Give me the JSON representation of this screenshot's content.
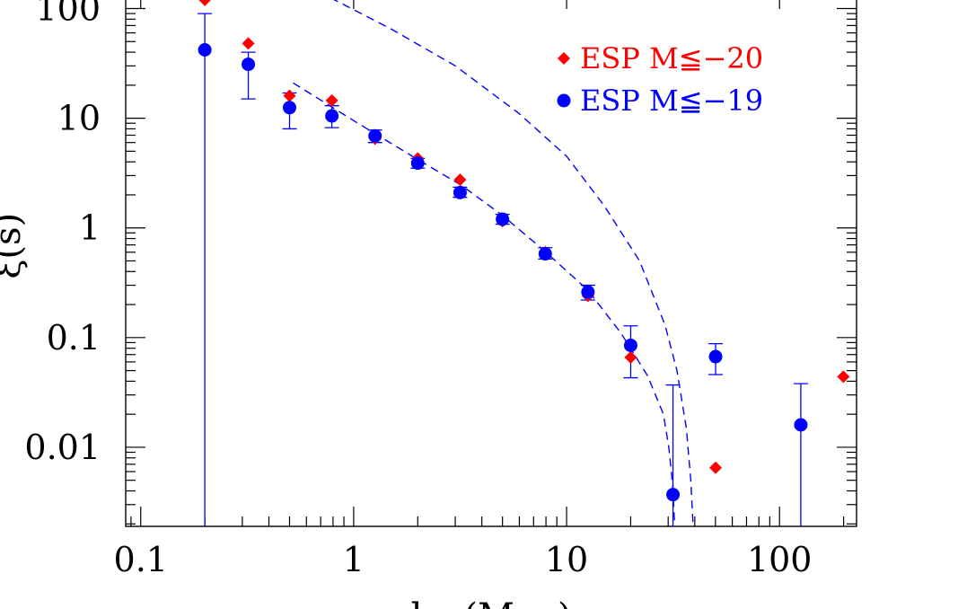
{
  "chart_data": {
    "type": "scatter",
    "xscale": "log",
    "yscale": "log",
    "xlim": [
      0.085,
      230
    ],
    "ylim": [
      0.0019,
      150
    ],
    "xlabel": "hs (Mpc)",
    "ylabel": "ξ(s)",
    "xticks": [
      {
        "value": 0.1,
        "label": "0.1"
      },
      {
        "value": 1,
        "label": "1"
      },
      {
        "value": 10,
        "label": "10"
      },
      {
        "value": 100,
        "label": "100"
      }
    ],
    "yticks": [
      {
        "value": 0.01,
        "label": "0.01"
      },
      {
        "value": 0.1,
        "label": "0.1"
      },
      {
        "value": 1,
        "label": "1"
      },
      {
        "value": 10,
        "label": "10"
      },
      {
        "value": 100,
        "label": "100"
      }
    ],
    "legend_position": "top-right",
    "series": [
      {
        "name": "ESP M≦−20",
        "color": "#ff0000",
        "marker": "diamond",
        "points": [
          {
            "x": 0.2,
            "y": 120
          },
          {
            "x": 0.32,
            "y": 48
          },
          {
            "x": 0.5,
            "y": 16
          },
          {
            "x": 0.79,
            "y": 14.5
          },
          {
            "x": 1.26,
            "y": 6.5
          },
          {
            "x": 2.0,
            "y": 4.3
          },
          {
            "x": 3.16,
            "y": 2.75
          },
          {
            "x": 5.0,
            "y": 1.15
          },
          {
            "x": 7.94,
            "y": 0.6
          },
          {
            "x": 12.6,
            "y": 0.24
          },
          {
            "x": 20.0,
            "y": 0.066
          },
          {
            "x": 50.1,
            "y": 0.0065
          },
          {
            "x": 199.5,
            "y": 0.044
          }
        ]
      },
      {
        "name": "ESP M≦−19",
        "color": "#0000ff",
        "marker": "circle",
        "points": [
          {
            "x": 0.2,
            "y": 42,
            "yerr": [
              0.0019,
              90
            ]
          },
          {
            "x": 0.32,
            "y": 31,
            "yerr": [
              15,
              40
            ]
          },
          {
            "x": 0.5,
            "y": 12.5,
            "yerr": [
              8,
              17
            ]
          },
          {
            "x": 0.79,
            "y": 10.5,
            "yerr": [
              8.2,
              13
            ]
          },
          {
            "x": 1.26,
            "y": 6.9,
            "yerr": [
              6,
              7.8
            ]
          },
          {
            "x": 2.0,
            "y": 3.9,
            "yerr": [
              3.5,
              4.3
            ]
          },
          {
            "x": 3.16,
            "y": 2.1,
            "yerr": [
              1.9,
              2.35
            ]
          },
          {
            "x": 5.0,
            "y": 1.2,
            "yerr": [
              1.08,
              1.33
            ]
          },
          {
            "x": 7.94,
            "y": 0.58,
            "yerr": [
              0.52,
              0.66
            ]
          },
          {
            "x": 12.6,
            "y": 0.26,
            "yerr": [
              0.22,
              0.3
            ]
          },
          {
            "x": 20.0,
            "y": 0.085,
            "yerr": [
              0.043,
              0.128
            ]
          },
          {
            "x": 31.6,
            "y": 0.0037,
            "yerr": [
              0.0019,
              0.037
            ]
          },
          {
            "x": 50.1,
            "y": 0.067,
            "yerr": [
              0.046,
              0.088
            ]
          },
          {
            "x": 125.9,
            "y": 0.016,
            "yerr": [
              0.0019,
              0.038
            ]
          }
        ]
      }
    ],
    "model_curves": [
      {
        "color": "#0000ff",
        "style": "dashed",
        "points": [
          [
            0.52,
            21
          ],
          [
            1,
            9.5
          ],
          [
            2,
            4.2
          ],
          [
            3.2,
            2.45
          ],
          [
            5,
            1.3
          ],
          [
            8,
            0.6
          ],
          [
            12.6,
            0.27
          ],
          [
            18,
            0.11
          ],
          [
            24,
            0.045
          ],
          [
            28.5,
            0.02
          ],
          [
            30.2,
            0.01
          ],
          [
            31.5,
            0.0045
          ],
          [
            32.2,
            0.0019
          ]
        ]
      },
      {
        "color": "#0000ff",
        "style": "dashed",
        "points": [
          [
            0.78,
            125
          ],
          [
            1.5,
            65
          ],
          [
            3,
            30
          ],
          [
            6,
            11
          ],
          [
            10,
            4.5
          ],
          [
            15,
            1.6
          ],
          [
            22,
            0.5
          ],
          [
            29,
            0.13
          ],
          [
            33,
            0.05
          ],
          [
            36.5,
            0.015
          ],
          [
            38.3,
            0.005
          ],
          [
            39.3,
            0.0019
          ]
        ]
      }
    ]
  }
}
